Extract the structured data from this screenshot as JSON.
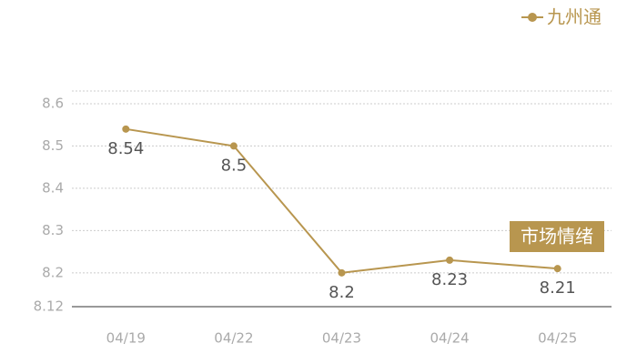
{
  "chart_data": {
    "type": "line",
    "categories": [
      "04/19",
      "04/22",
      "04/23",
      "04/24",
      "04/25"
    ],
    "series": [
      {
        "name": "九州通",
        "color": "#b8964f",
        "values": [
          8.54,
          8.5,
          8.2,
          8.23,
          8.21
        ]
      }
    ],
    "ylim": [
      8.12,
      8.63
    ],
    "yticks": [
      8.12,
      8.2,
      8.3,
      8.4,
      8.5,
      8.6
    ],
    "grid": true,
    "legend": "top-right",
    "annotations": [
      "市场情绪"
    ]
  }
}
